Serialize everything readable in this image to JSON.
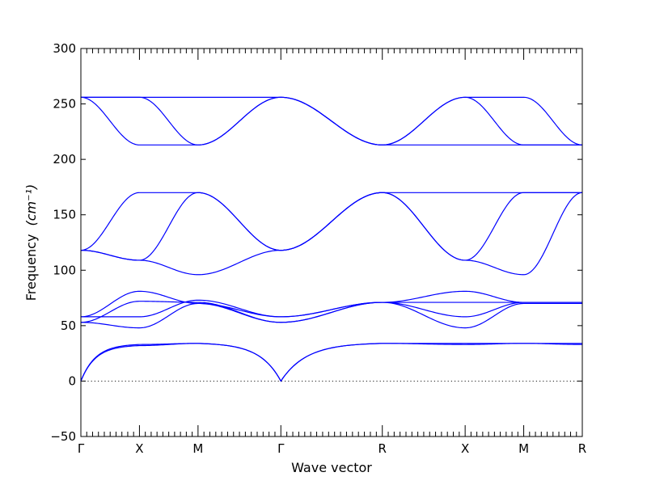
{
  "chart_data": {
    "type": "line",
    "title": "",
    "xlabel": "Wave vector",
    "ylabel": "Frequency",
    "ylabel_unit": "(cm⁻¹)",
    "ylim": [
      -50,
      300
    ],
    "yticks": [
      -50,
      0,
      50,
      100,
      150,
      200,
      250,
      300
    ],
    "xticks": [
      "Γ",
      "X",
      "M",
      "Γ",
      "R",
      "X",
      "M",
      "R"
    ],
    "x_positions": [
      0,
      0.5,
      1.0,
      1.707,
      2.573,
      3.28,
      3.78,
      4.28
    ],
    "grid": false,
    "legend": "none",
    "line_color": "#0000ff",
    "zero_line": {
      "y": 0,
      "style": "dotted"
    },
    "series": [
      {
        "x": [
          0,
          0.5,
          1.0,
          1.707,
          2.573,
          3.28,
          3.78,
          4.28
        ],
        "y": [
          0,
          32,
          34,
          0,
          34,
          33,
          34,
          33
        ]
      },
      {
        "x": [
          0,
          0.5,
          1.0,
          1.707,
          2.573,
          3.28,
          3.78,
          4.28
        ],
        "y": [
          0,
          33,
          34,
          0,
          34,
          34,
          34,
          34
        ]
      },
      {
        "x": [
          0,
          0.5,
          1.0,
          1.707,
          2.573,
          3.28,
          3.78,
          4.28
        ],
        "y": [
          53,
          48,
          70,
          58,
          71,
          48,
          70,
          70
        ]
      },
      {
        "x": [
          0,
          0.5,
          1.0,
          1.707,
          2.573,
          3.28,
          3.78,
          4.28
        ],
        "y": [
          53,
          72,
          71,
          53,
          71,
          58,
          71,
          71
        ]
      },
      {
        "x": [
          0,
          0.5,
          1.0,
          1.707,
          2.573,
          3.28,
          3.78,
          4.28
        ],
        "y": [
          58,
          58,
          73,
          58,
          71,
          71,
          71,
          71
        ]
      },
      {
        "x": [
          0,
          0.5,
          1.0,
          1.707,
          2.573,
          3.28,
          3.78,
          4.28
        ],
        "y": [
          58,
          81,
          70,
          53,
          71,
          81,
          71,
          71
        ]
      },
      {
        "x": [
          0,
          0.5,
          1.0,
          1.707,
          2.573,
          3.28,
          3.78,
          4.28
        ],
        "y": [
          118,
          109,
          96,
          118,
          170,
          109,
          96,
          170
        ]
      },
      {
        "x": [
          0,
          0.5,
          1.0,
          1.707,
          2.573,
          3.28,
          3.78,
          4.28
        ],
        "y": [
          118,
          109,
          170,
          118,
          170,
          109,
          170,
          170
        ]
      },
      {
        "x": [
          0,
          0.5,
          1.0,
          1.707,
          2.573,
          3.28,
          3.78,
          4.28
        ],
        "y": [
          118,
          170,
          170,
          118,
          170,
          170,
          170,
          170
        ]
      },
      {
        "x": [
          0,
          0.5,
          1.0,
          1.707,
          2.573,
          3.28,
          3.78,
          4.28
        ],
        "y": [
          256,
          213,
          213,
          256,
          213,
          256,
          213,
          213
        ]
      },
      {
        "x": [
          0,
          0.5,
          1.0,
          1.707,
          2.573,
          3.28,
          3.78,
          4.28
        ],
        "y": [
          256,
          256,
          213,
          256,
          213,
          256,
          256,
          213
        ]
      },
      {
        "x": [
          0,
          0.5,
          1.0,
          1.707,
          2.573,
          3.28,
          3.78,
          4.28
        ],
        "y": [
          256,
          256,
          256,
          256,
          213,
          213,
          213,
          213
        ]
      }
    ]
  }
}
